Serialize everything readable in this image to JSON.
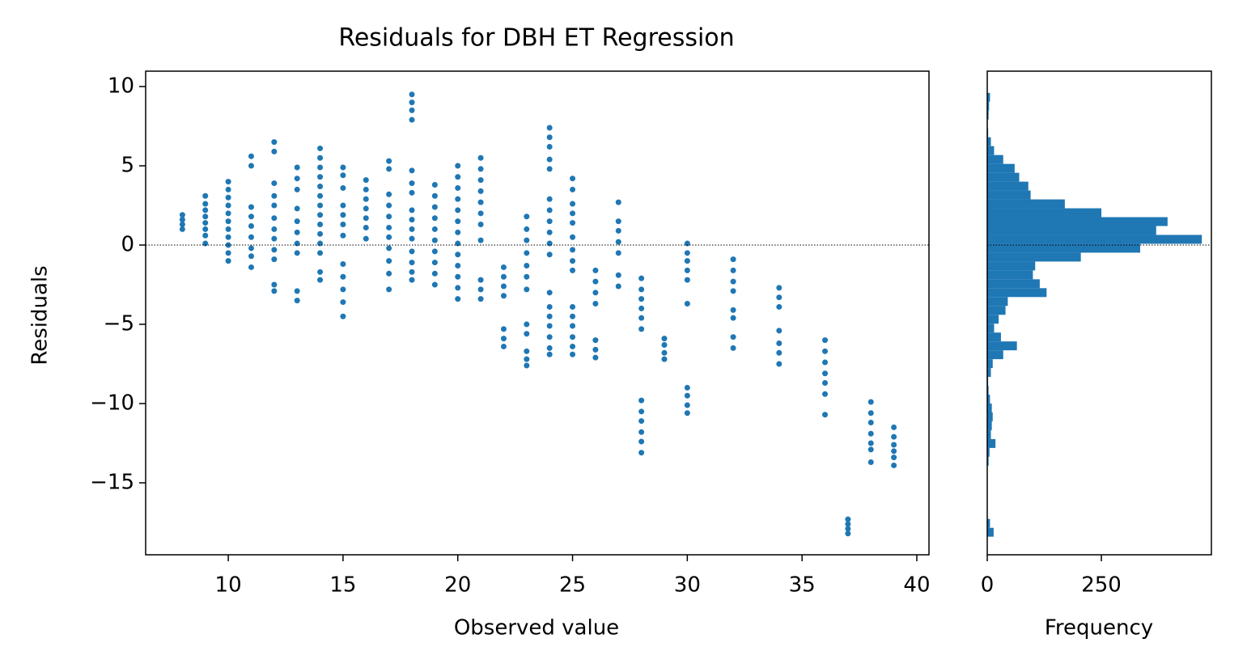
{
  "chart_data": [
    {
      "type": "scatter",
      "title": "Residuals for DBH ET Regression",
      "xlabel": "Observed value",
      "ylabel": "Residuals",
      "color": "#1f77b4",
      "reference_line": 0,
      "xlim": [
        6.4,
        40.53
      ],
      "ylim": [
        -19.54,
        10.97
      ],
      "xticks": [
        10,
        15,
        20,
        25,
        30,
        35,
        40
      ],
      "yticks": [
        {
          "value": -15,
          "label": "−15"
        },
        {
          "value": -10,
          "label": "−10"
        },
        {
          "value": -5,
          "label": "−5"
        },
        0,
        5,
        10
      ],
      "x": [
        8,
        8,
        8,
        8,
        9,
        9,
        9,
        9,
        9,
        9,
        9,
        9,
        10,
        10,
        10,
        10,
        10,
        10,
        10,
        10,
        10,
        10,
        10,
        11,
        11,
        11,
        11,
        11,
        11,
        11,
        11,
        11,
        12,
        12,
        12,
        12,
        12,
        12,
        12,
        12,
        12,
        12,
        12,
        12,
        13,
        13,
        13,
        13,
        13,
        13,
        13,
        13,
        13,
        13,
        14,
        14,
        14,
        14,
        14,
        14,
        14,
        14,
        14,
        14,
        14,
        14,
        14,
        14,
        15,
        15,
        15,
        15,
        15,
        15,
        15,
        15,
        15,
        15,
        15,
        15,
        16,
        16,
        16,
        16,
        16,
        16,
        16,
        17,
        17,
        17,
        17,
        17,
        17,
        17,
        17,
        17,
        17,
        17,
        18,
        18,
        18,
        18,
        18,
        18,
        18,
        18,
        18,
        18,
        18,
        18,
        18,
        18,
        18,
        19,
        19,
        19,
        19,
        19,
        19,
        19,
        19,
        19,
        19,
        20,
        20,
        20,
        20,
        20,
        20,
        20,
        20,
        20,
        20,
        20,
        20,
        20,
        21,
        21,
        21,
        21,
        21,
        21,
        21,
        21,
        21,
        21,
        21,
        22,
        22,
        22,
        22,
        22,
        22,
        22,
        23,
        23,
        23,
        23,
        23,
        23,
        23,
        23,
        23,
        23,
        23,
        23,
        24,
        24,
        24,
        24,
        24,
        24,
        24,
        24,
        24,
        24,
        24,
        24,
        24,
        24,
        24,
        24,
        24,
        24,
        25,
        25,
        25,
        25,
        25,
        25,
        25,
        25,
        25,
        25,
        25,
        25,
        25,
        25,
        25,
        26,
        26,
        26,
        26,
        26,
        26,
        26,
        27,
        27,
        27,
        27,
        27,
        27,
        27,
        28,
        28,
        28,
        28,
        28,
        28,
        28,
        28,
        28,
        28,
        28,
        28,
        29,
        29,
        29,
        29,
        30,
        30,
        30,
        30,
        30,
        30,
        30,
        30,
        30,
        30,
        32,
        32,
        32,
        32,
        32,
        32,
        32,
        32,
        34,
        34,
        34,
        34,
        34,
        34,
        34,
        36,
        36,
        36,
        36,
        36,
        36,
        36,
        37,
        37,
        37,
        37,
        38,
        38,
        38,
        38,
        38,
        38,
        38,
        39,
        39,
        39,
        39,
        39,
        39
      ],
      "values": [
        1.9,
        1.6,
        1.3,
        1.0,
        3.1,
        2.6,
        2.2,
        1.8,
        1.4,
        1.0,
        0.6,
        0.1,
        4.0,
        3.5,
        3.0,
        2.5,
        2.0,
        1.5,
        1.0,
        0.5,
        0,
        -0.5,
        -1.0,
        5.6,
        5.0,
        2.4,
        1.8,
        1.2,
        0.5,
        -0.2,
        -0.7,
        -1.4,
        6.5,
        5.9,
        3.9,
        3.1,
        2.5,
        1.7,
        1.0,
        0.4,
        -0.3,
        -0.9,
        -2.5,
        -2.9,
        4.9,
        4.2,
        3.5,
        2.3,
        1.5,
        0.8,
        0.1,
        -0.5,
        -2.9,
        -3.5,
        6.1,
        5.5,
        4.9,
        4.3,
        3.7,
        3.1,
        2.5,
        1.9,
        1.3,
        0.7,
        0.1,
        -0.5,
        -1.7,
        -2.2,
        4.9,
        4.4,
        3.6,
        2.5,
        1.9,
        1.3,
        0.6,
        -1.2,
        -2.0,
        -2.8,
        -3.6,
        -4.5,
        4.1,
        3.5,
        2.9,
        2.3,
        1.7,
        1.1,
        0.4,
        5.3,
        4.8,
        3.2,
        2.5,
        1.8,
        1.1,
        0.5,
        -0.2,
        -1.0,
        -1.8,
        -2.8,
        9.5,
        9.0,
        8.5,
        7.9,
        4.7,
        3.9,
        3.3,
        2.2,
        1.6,
        1.0,
        0.4,
        -0.4,
        -1.1,
        -1.7,
        -2.2,
        3.8,
        3.1,
        2.4,
        1.7,
        1.0,
        0.3,
        -0.4,
        -1.1,
        -1.8,
        -2.5,
        5.0,
        4.3,
        3.6,
        2.9,
        2.2,
        1.5,
        0.8,
        0.1,
        -0.6,
        -1.3,
        -2.0,
        -2.7,
        -3.4,
        5.5,
        4.8,
        4.1,
        3.4,
        2.7,
        2.0,
        1.3,
        0.3,
        -2.2,
        -2.8,
        -3.4,
        -1.4,
        -2.0,
        -2.6,
        -3.2,
        -5.3,
        -5.9,
        -6.4,
        1.8,
        1.0,
        0.3,
        -0.5,
        -1.3,
        -2.0,
        -2.8,
        -5.0,
        -5.6,
        -6.7,
        -7.2,
        -7.6,
        7.4,
        6.8,
        6.2,
        5.4,
        4.8,
        2.9,
        2.2,
        1.5,
        0.8,
        0.1,
        -0.6,
        -3.0,
        -3.9,
        -4.5,
        -5.1,
        -5.8,
        -6.5,
        -6.9,
        4.2,
        3.5,
        2.6,
        2.0,
        1.4,
        0.5,
        -0.3,
        -1.0,
        -1.6,
        -3.9,
        -4.5,
        -5.1,
        -5.8,
        -6.4,
        -6.9,
        -1.6,
        -2.3,
        -3.0,
        -3.7,
        -6.0,
        -6.6,
        -7.1,
        2.7,
        1.5,
        0.9,
        0.2,
        -0.5,
        -1.9,
        -2.6,
        -2.1,
        -2.8,
        -3.4,
        -4.0,
        -4.6,
        -5.3,
        -9.8,
        -10.5,
        -11.1,
        -11.8,
        -12.4,
        -13.1,
        -5.9,
        -6.3,
        -6.8,
        -7.2,
        0.1,
        -0.5,
        -1.0,
        -1.6,
        -2.2,
        -3.7,
        -9.0,
        -9.5,
        -10.1,
        -10.6,
        -0.9,
        -1.6,
        -2.3,
        -2.9,
        -4.1,
        -4.6,
        -5.8,
        -6.5,
        -2.7,
        -3.3,
        -3.9,
        -5.4,
        -6.2,
        -6.8,
        -7.5,
        -6.0,
        -6.7,
        -7.4,
        -8.1,
        -8.7,
        -9.4,
        -10.7,
        -17.3,
        -17.6,
        -17.9,
        -18.2,
        -9.9,
        -10.6,
        -11.2,
        -11.9,
        -12.5,
        -12.9,
        -13.7,
        -11.5,
        -12.1,
        -12.6,
        -13.0,
        -13.4,
        -13.9
      ]
    },
    {
      "type": "histogram",
      "orientation": "horizontal",
      "xlabel": "Frequency",
      "color": "#1f77b4",
      "reference_line": 0,
      "xlim": [
        0,
        491
      ],
      "xticks": [
        0,
        250
      ],
      "ylim": [
        -19.54,
        10.97
      ],
      "bins": [
        -18.4,
        -17.84,
        -17.28,
        -16.72,
        -16.16,
        -15.6,
        -15.04,
        -14.48,
        -13.92,
        -13.36,
        -12.8,
        -12.24,
        -11.68,
        -11.12,
        -10.56,
        -10,
        -9.44,
        -8.88,
        -8.32,
        -7.76,
        -7.2,
        -6.64,
        -6.08,
        -5.52,
        -4.96,
        -4.4,
        -3.84,
        -3.28,
        -2.72,
        -2.16,
        -1.6,
        -1.04,
        -0.48,
        0.08,
        0.64,
        1.2,
        1.76,
        2.32,
        2.88,
        3.44,
        4,
        4.56,
        5.12,
        5.68,
        6.24,
        6.8,
        7.36,
        7.92,
        8.48,
        9.04,
        9.6
      ],
      "counts": [
        14,
        6,
        0,
        0,
        0,
        0,
        0,
        0,
        3,
        5,
        18,
        8,
        10,
        12,
        10,
        6,
        3,
        2,
        8,
        12,
        35,
        65,
        30,
        15,
        25,
        40,
        45,
        130,
        115,
        100,
        105,
        205,
        335,
        470,
        370,
        395,
        250,
        170,
        95,
        90,
        70,
        60,
        35,
        15,
        8,
        2,
        1,
        3,
        4,
        6
      ]
    }
  ]
}
